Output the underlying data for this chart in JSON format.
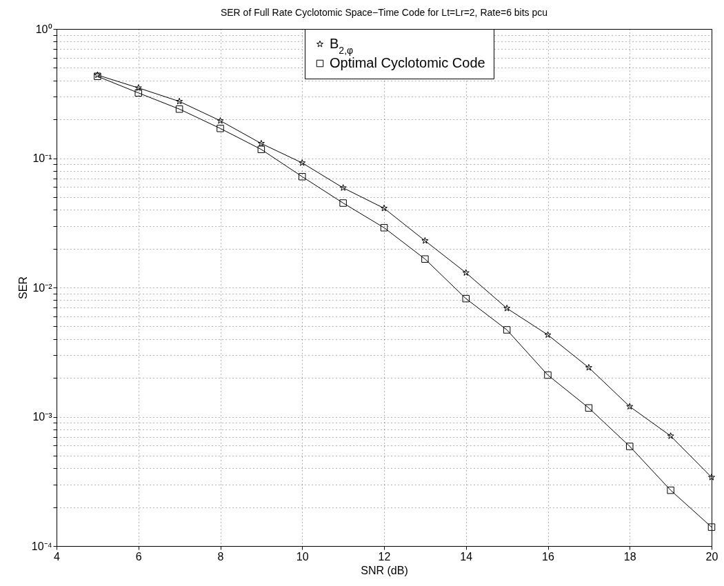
{
  "chart_data": {
    "type": "line",
    "title": "SER of Full Rate Cyclotomic Space−Time Code for Lt=Lr=2, Rate=6 bits pcu",
    "xlabel": "SNR (dB)",
    "ylabel": "SER",
    "log": "y",
    "grid": true,
    "legend": "top right",
    "line_style": "solid",
    "x": [
      5,
      6,
      7,
      8,
      9,
      10,
      11,
      12,
      13,
      14,
      15,
      16,
      17,
      18,
      19,
      20
    ],
    "series": [
      {
        "name": "B$_{2,φ}$",
        "color": "#000000",
        "marker": "star",
        "values": [
          0.44,
          0.35,
          0.275,
          0.195,
          0.13,
          0.092,
          0.059,
          0.041,
          0.023,
          0.013,
          0.0069,
          0.0043,
          0.0024,
          0.0012,
          0.00071,
          0.00034
        ]
      },
      {
        "name": "Optimal Cyclotomic Code",
        "color": "#000000",
        "marker": "square",
        "values": [
          0.43,
          0.32,
          0.24,
          0.17,
          0.117,
          0.072,
          0.045,
          0.029,
          0.0166,
          0.0082,
          0.0047,
          0.0021,
          0.00117,
          0.00059,
          0.00027,
          0.00014
        ]
      }
    ],
    "xlim": [
      4,
      20
    ],
    "xticks": [
      4,
      6,
      8,
      10,
      12,
      14,
      16,
      18,
      20
    ],
    "ylim": [
      0.0001,
      1
    ],
    "yticks": [
      {
        "value": 0.0001,
        "label": "10⁻⁴"
      },
      {
        "value": 0.0002,
        "label": null
      },
      {
        "value": 0.0003,
        "label": null
      },
      {
        "value": 0.0004,
        "label": null
      },
      {
        "value": 0.0005,
        "label": null
      },
      {
        "value": 0.0006,
        "label": null
      },
      {
        "value": 0.0007,
        "label": null
      },
      {
        "value": 0.0008,
        "label": null
      },
      {
        "value": 0.0009,
        "label": null
      },
      {
        "value": 0.001,
        "label": "10⁻³"
      },
      {
        "value": 0.002,
        "label": null
      },
      {
        "value": 0.003,
        "label": null
      },
      {
        "value": 0.004,
        "label": null
      },
      {
        "value": 0.005,
        "label": null
      },
      {
        "value": 0.006,
        "label": null
      },
      {
        "value": 0.007,
        "label": null
      },
      {
        "value": 0.008,
        "label": null
      },
      {
        "value": 0.009,
        "label": null
      },
      {
        "value": 0.01,
        "label": "10⁻²"
      },
      {
        "value": 0.02,
        "label": null
      },
      {
        "value": 0.03,
        "label": null
      },
      {
        "value": 0.04,
        "label": null
      },
      {
        "value": 0.05,
        "label": null
      },
      {
        "value": 0.06,
        "label": null
      },
      {
        "value": 0.07,
        "label": null
      },
      {
        "value": 0.08,
        "label": null
      },
      {
        "value": 0.09,
        "label": null
      },
      {
        "value": 0.1,
        "label": "10⁻¹"
      },
      {
        "value": 0.2,
        "label": null
      },
      {
        "value": 0.3,
        "label": null
      },
      {
        "value": 0.4,
        "label": null
      },
      {
        "value": 0.5,
        "label": null
      },
      {
        "value": 0.6,
        "label": null
      },
      {
        "value": 0.7,
        "label": null
      },
      {
        "value": 0.8,
        "label": null
      },
      {
        "value": 0.9,
        "label": null
      },
      {
        "value": 1,
        "label": "10⁰"
      }
    ]
  }
}
